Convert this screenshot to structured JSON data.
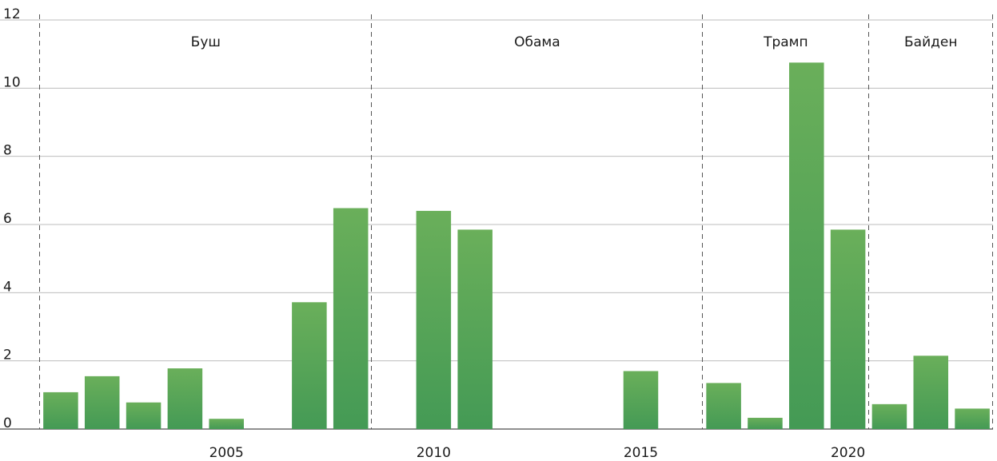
{
  "chart_data": {
    "type": "bar",
    "title": "",
    "xlabel": "",
    "ylabel": "",
    "ylim": [
      0,
      12
    ],
    "yticks": [
      0,
      2,
      4,
      6,
      8,
      10,
      12
    ],
    "xticks": [
      2005,
      2010,
      2015,
      2020
    ],
    "grid": true,
    "bar_color": "#4e9f54",
    "x": [
      2001,
      2002,
      2003,
      2004,
      2005,
      2006,
      2007,
      2008,
      2009,
      2010,
      2011,
      2012,
      2013,
      2014,
      2015,
      2016,
      2017,
      2018,
      2019,
      2020,
      2021,
      2022,
      2023
    ],
    "values": [
      1.08,
      1.55,
      0.78,
      1.78,
      0.3,
      0,
      3.72,
      6.48,
      0,
      6.4,
      5.85,
      0,
      0,
      0,
      1.7,
      0,
      1.35,
      0.33,
      10.75,
      5.85,
      0.73,
      2.15,
      0.6
    ],
    "eras": [
      {
        "label": "Буш",
        "start": 2001,
        "end": 2008
      },
      {
        "label": "Обама",
        "start": 2009,
        "end": 2016
      },
      {
        "label": "Трамп",
        "start": 2017,
        "end": 2020
      },
      {
        "label": "Байден",
        "start": 2021,
        "end": 2023
      }
    ]
  }
}
